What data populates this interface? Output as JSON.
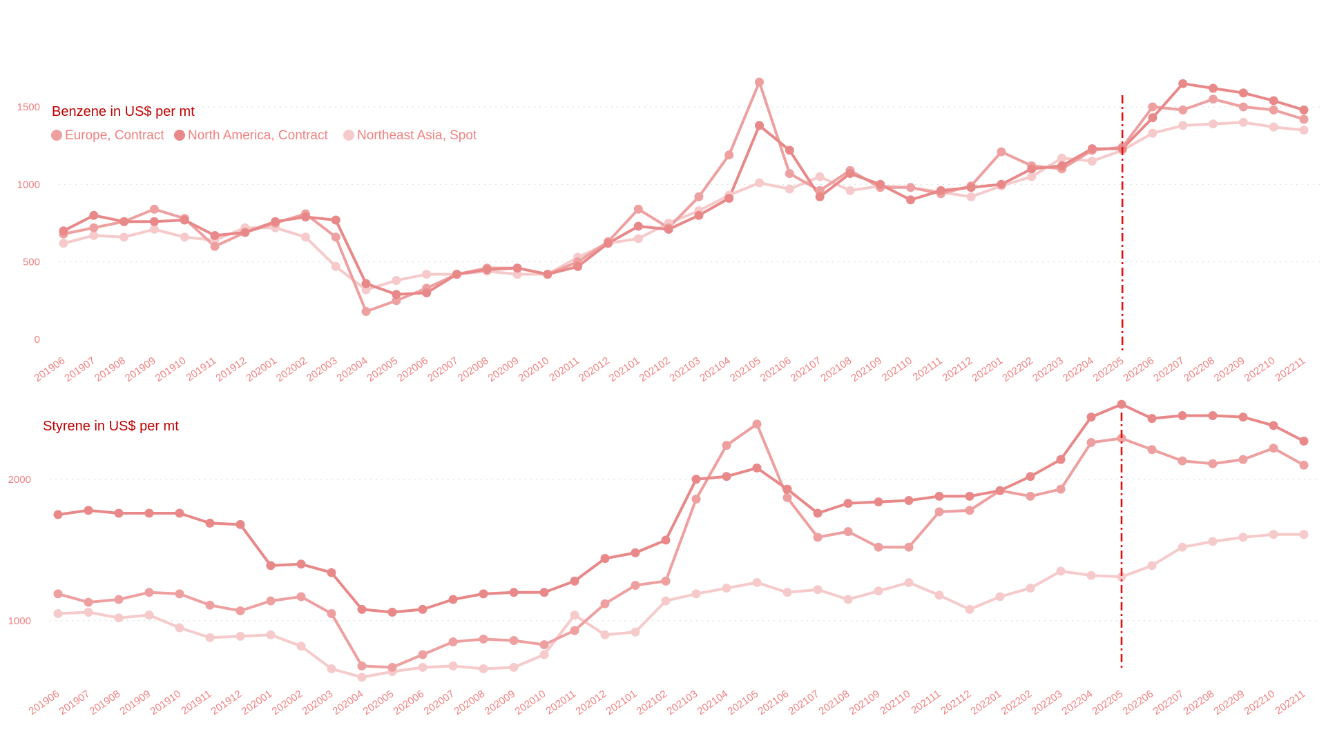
{
  "colors": {
    "europe": "#ee9f9f",
    "north_america": "#e88888",
    "asia": "#f6caca",
    "title": "#c00000",
    "tick": "#f08080",
    "grid": "#dddddd",
    "marker_line": "#e01010"
  },
  "legend": [
    {
      "label": "Europe, Contract",
      "color": "#ee9f9f"
    },
    {
      "label": "North America, Contract",
      "color": "#e88888"
    },
    {
      "label": "Northeast Asia, Spot",
      "color": "#f6caca"
    }
  ],
  "chart_data": [
    {
      "type": "line",
      "title": "Benzene in US$ per mt",
      "xlabel": "",
      "ylabel": "",
      "ylim": [
        0,
        1700
      ],
      "yticks": [
        0,
        500,
        1000,
        1500
      ],
      "grid": true,
      "legend_position": "top-left",
      "vertical_marker": "202205",
      "x": [
        "201906",
        "201907",
        "201908",
        "201909",
        "201910",
        "201911",
        "201912",
        "202001",
        "202002",
        "202003",
        "202004",
        "202005",
        "202006",
        "202007",
        "202008",
        "202009",
        "202010",
        "202011",
        "202012",
        "202101",
        "202102",
        "202103",
        "202104",
        "202105",
        "202106",
        "202107",
        "202108",
        "202109",
        "202110",
        "202111",
        "202112",
        "202201",
        "202202",
        "202203",
        "202204",
        "202205",
        "202206",
        "202207",
        "202208",
        "202209",
        "202210",
        "202211"
      ],
      "series": [
        {
          "name": "Europe, Contract",
          "values": [
            680,
            720,
            760,
            840,
            780,
            600,
            690,
            750,
            810,
            660,
            180,
            250,
            330,
            420,
            460,
            460,
            420,
            500,
            630,
            840,
            720,
            920,
            1190,
            1660,
            1070,
            960,
            1090,
            980,
            980,
            940,
            990,
            1210,
            1120,
            1100,
            1220,
            1240,
            1500,
            1480,
            1550,
            1500,
            1480,
            1420
          ]
        },
        {
          "name": "North America, Contract",
          "values": [
            700,
            800,
            760,
            760,
            770,
            670,
            690,
            760,
            790,
            770,
            360,
            290,
            300,
            420,
            450,
            460,
            420,
            470,
            620,
            730,
            710,
            800,
            910,
            1380,
            1220,
            920,
            1070,
            1000,
            900,
            960,
            980,
            1000,
            1100,
            1120,
            1230,
            1230,
            1430,
            1650,
            1620,
            1590,
            1540,
            1480
          ]
        },
        {
          "name": "Northeast Asia, Spot",
          "values": [
            620,
            670,
            660,
            710,
            660,
            640,
            720,
            720,
            660,
            470,
            320,
            380,
            420,
            420,
            440,
            420,
            420,
            530,
            620,
            650,
            750,
            830,
            930,
            1010,
            970,
            1050,
            960,
            990,
            980,
            950,
            920,
            990,
            1050,
            1170,
            1150,
            1220,
            1330,
            1380,
            1390,
            1400,
            1370,
            1350
          ]
        }
      ]
    },
    {
      "type": "line",
      "title": "Styrene in US$ per mt",
      "xlabel": "",
      "ylabel": "",
      "ylim": [
        560,
        2500
      ],
      "yticks": [
        1000,
        2000
      ],
      "grid": true,
      "legend_position": "none",
      "vertical_marker": "202205",
      "x": [
        "201906",
        "201907",
        "201908",
        "201909",
        "201910",
        "201911",
        "201912",
        "202001",
        "202002",
        "202003",
        "202004",
        "202005",
        "202006",
        "202007",
        "202008",
        "202009",
        "202010",
        "202011",
        "202012",
        "202101",
        "202102",
        "202103",
        "202104",
        "202105",
        "202106",
        "202107",
        "202108",
        "202109",
        "202110",
        "202111",
        "202112",
        "202201",
        "202202",
        "202203",
        "202204",
        "202205",
        "202206",
        "202207",
        "202208",
        "202209",
        "202210",
        "202211"
      ],
      "series": [
        {
          "name": "Europe, Contract",
          "values": [
            1190,
            1130,
            1150,
            1200,
            1190,
            1110,
            1070,
            1140,
            1170,
            1050,
            680,
            670,
            760,
            850,
            870,
            860,
            830,
            930,
            1120,
            1250,
            1280,
            1860,
            2240,
            2390,
            1870,
            1590,
            1630,
            1520,
            1520,
            1770,
            1780,
            1920,
            1880,
            1930,
            2260,
            2290,
            2210,
            2130,
            2110,
            2140,
            2220,
            2100
          ]
        },
        {
          "name": "North America, Contract",
          "values": [
            1750,
            1780,
            1760,
            1760,
            1760,
            1690,
            1680,
            1390,
            1400,
            1340,
            1080,
            1060,
            1080,
            1150,
            1190,
            1200,
            1200,
            1280,
            1440,
            1480,
            1570,
            2000,
            2020,
            2080,
            1930,
            1760,
            1830,
            1840,
            1850,
            1880,
            1880,
            1920,
            2020,
            2140,
            2440,
            2530,
            2430,
            2450,
            2450,
            2440,
            2380,
            2270
          ]
        },
        {
          "name": "Northeast Asia, Spot",
          "values": [
            1050,
            1060,
            1020,
            1040,
            950,
            880,
            890,
            900,
            820,
            660,
            600,
            640,
            670,
            680,
            660,
            670,
            760,
            1040,
            900,
            920,
            1140,
            1190,
            1230,
            1270,
            1200,
            1220,
            1150,
            1210,
            1270,
            1180,
            1080,
            1170,
            1230,
            1350,
            1320,
            1310,
            1390,
            1520,
            1560,
            1590,
            1610,
            1610
          ]
        }
      ]
    }
  ]
}
